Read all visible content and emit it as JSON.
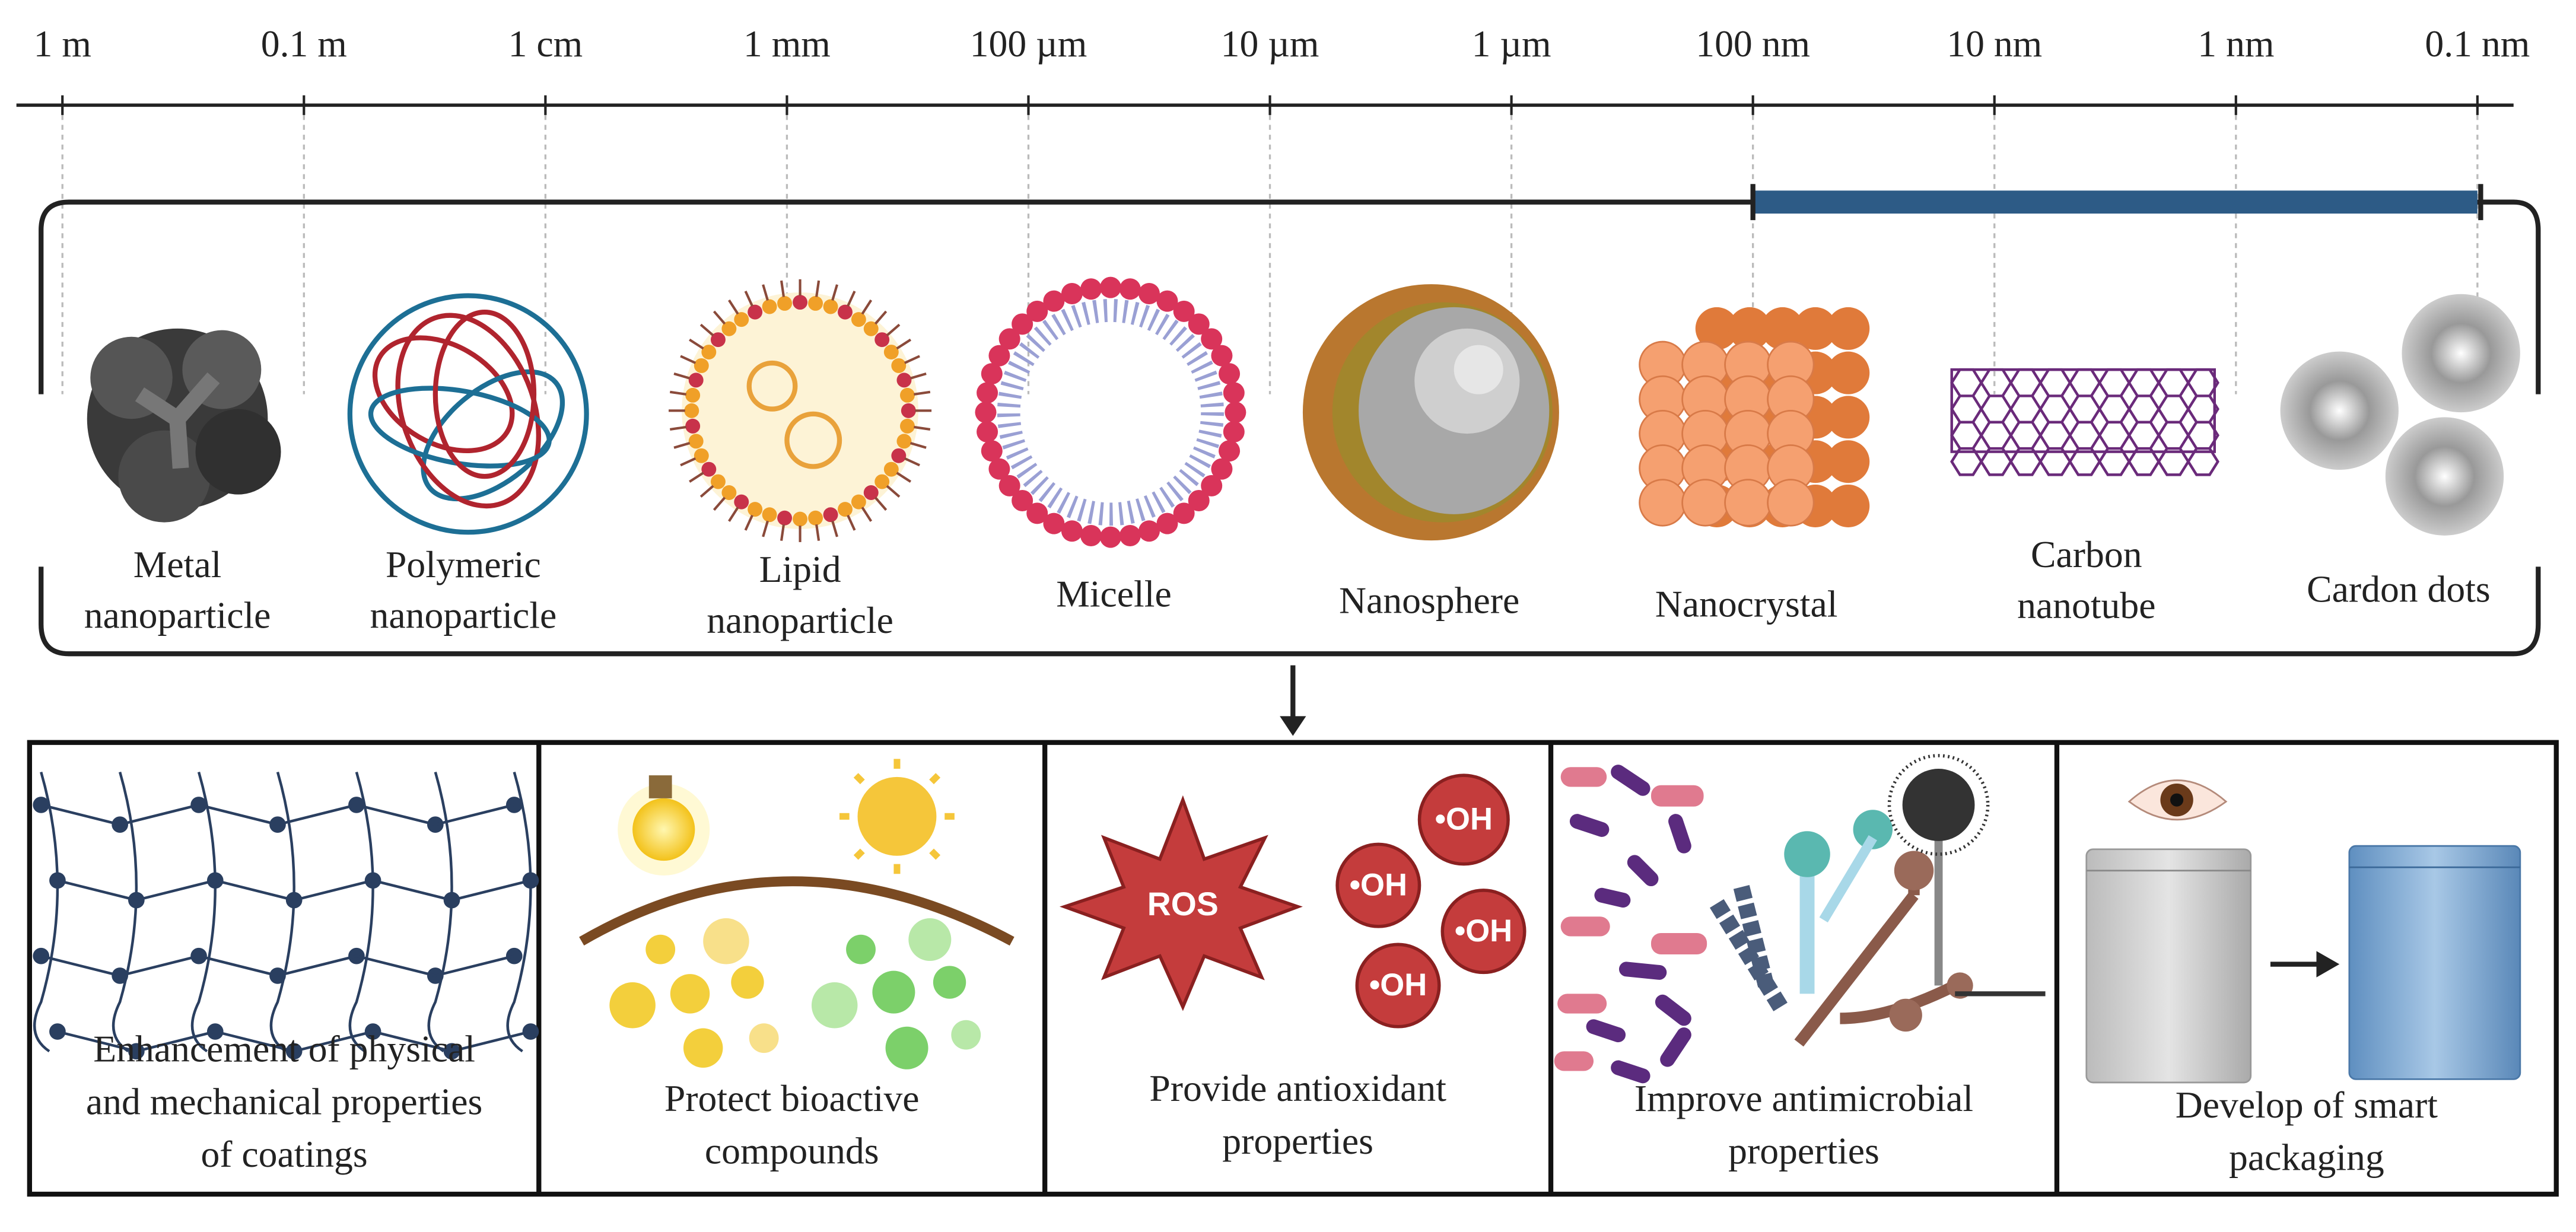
{
  "scale": {
    "labels": [
      "1 m",
      "0.1 m",
      "1 cm",
      "1 mm",
      "100 µm",
      "10 µm",
      "1 µm",
      "100 nm",
      "10 nm",
      "1 nm",
      "0.1 nm"
    ]
  },
  "nanoparticles": [
    {
      "label": [
        "Metal",
        "nanoparticle"
      ]
    },
    {
      "label": [
        "Polymeric",
        "nanoparticle"
      ]
    },
    {
      "label": [
        "Lipid",
        "nanoparticle"
      ]
    },
    {
      "label": [
        "Micelle"
      ]
    },
    {
      "label": [
        "Nanosphere"
      ]
    },
    {
      "label": [
        "Nanocrystal"
      ]
    },
    {
      "label": [
        "Carbon",
        "nanotube"
      ]
    },
    {
      "label": [
        "Cardon dots"
      ]
    }
  ],
  "applications": [
    {
      "label": [
        "Enhancement of physical",
        "and mechanical properties",
        "of coatings"
      ]
    },
    {
      "label": [
        "Protect bioactive",
        "compounds"
      ]
    },
    {
      "label": [
        "Provide antioxidant",
        "properties"
      ]
    },
    {
      "label": [
        "Improve antimicrobial",
        "properties"
      ]
    },
    {
      "label": [
        "Develop of smart",
        "packaging"
      ]
    }
  ],
  "icons": {
    "ros": "ROS",
    "hydroxyl": [
      "•OH",
      "•OH",
      "•OH",
      "•OH"
    ]
  }
}
